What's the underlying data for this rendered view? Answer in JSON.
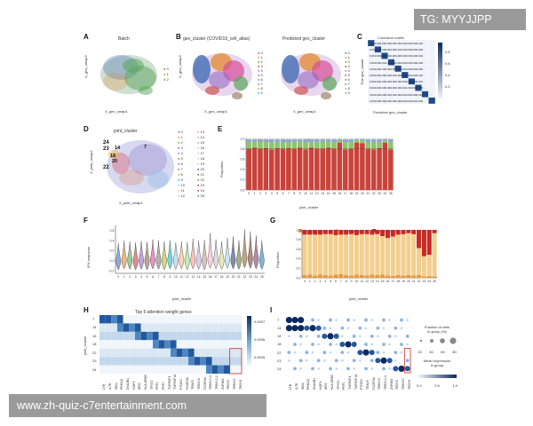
{
  "watermark_top": "TG: MYYJJPP",
  "watermark_bottom": "www.zh-quiz-c7entertainment.com",
  "panels": {
    "A": {
      "letter": "A",
      "title": "Batch",
      "xlabel": "X_gex_umap1",
      "ylabel": "X_gex_umap2",
      "legend": [
        "0",
        "1",
        "2"
      ],
      "legend_colors": [
        "#4b72b5",
        "#e3892e",
        "#5aa65a"
      ]
    },
    "B": {
      "letter": "B",
      "title1": "gex_cluster (COVID19_cell_atlas)",
      "title2": "Predicted gex_cluster",
      "xlabel": "X_gex_umap1",
      "ylabel": "X_gex_umap2",
      "legend": [
        "0",
        "1",
        "2",
        "3",
        "4",
        "5",
        "6",
        "7",
        "8",
        "9"
      ]
    },
    "C": {
      "letter": "C",
      "title": "Confusion matrix",
      "xlabel": "Predicted gex_cluster",
      "ylabel": "True gex_cluster",
      "rows": [
        "0.990.000.000.000.000.000.000.000.000.010",
        "0.000.990.000.000.000.010.000.000.000.000",
        "0.000.000.990.000.000.000.000.000.000.010",
        "0.000.000.001.000.000.000.000.000.000.000",
        "0.000.000.000.000.950.000.000.000.000.050",
        "0.000.000.000.000.000.990.000.000.000.010",
        "0.000.000.000.000.000.000.990.000.000.010",
        "0.000.000.000.000.000.000.001.000.000.000",
        "0.000.000.000.000.000.000.000.000.990.010",
        "0.000.000.000.000.000.000.000.000.001.000"
      ],
      "axis_ticks": [
        "0",
        "1",
        "2",
        "3",
        "4",
        "5",
        "6",
        "7",
        "8",
        "9"
      ],
      "colorbar": [
        "0.8",
        "0.6",
        "0.4",
        "0.2"
      ]
    },
    "D": {
      "letter": "D",
      "title": "joint_cluster",
      "xlabel": "X_joint_umap1",
      "ylabel": "X_joint_umap2",
      "legend_col1": [
        "0",
        "1",
        "2",
        "3",
        "4",
        "5",
        "6",
        "7",
        "8",
        "9",
        "10",
        "11",
        "12"
      ],
      "legend_col2": [
        "13",
        "14",
        "15",
        "16",
        "17",
        "18",
        "19",
        "20",
        "21",
        "22",
        "23",
        "24",
        "25"
      ],
      "labels": [
        "24",
        "23",
        "22",
        "14",
        "18",
        "20",
        "7"
      ]
    },
    "E": {
      "letter": "E",
      "xlabel": "joint_cluster",
      "ylabel": "Proportion",
      "legend": [
        "Covid",
        "Healthy",
        "LPS",
        "Non_covid"
      ],
      "legend_colors": [
        "#c9433b",
        "#8fc46a",
        "#8aa6d6",
        "#c8c8c8"
      ],
      "yticks": [
        "0.0",
        "0.2",
        "0.4",
        "0.6",
        "0.8",
        "1.0"
      ]
    },
    "F": {
      "letter": "F",
      "xlabel": "joint_cluster",
      "ylabel": "IFN response",
      "yticks": [
        "0.6",
        "0.4",
        "0.2",
        "0.0",
        "-0.2"
      ]
    },
    "G": {
      "letter": "G",
      "xlabel": "joint_cluster",
      "ylabel": "Proportion",
      "legend": [
        "Asymptomatic",
        "Mild/moderate",
        "Severe/critical"
      ],
      "legend_colors": [
        "#e69a3c",
        "#f3cf8e",
        "#c72a24"
      ],
      "yticks": [
        "0.0",
        "0.2",
        "0.4",
        "0.6",
        "0.8",
        "1.0"
      ]
    },
    "H": {
      "letter": "H",
      "title": "Top 5 attention weight genes",
      "ylabel": "joint_cluster",
      "rows": [
        "7",
        "14",
        "16",
        "18",
        "22",
        "23",
        "24"
      ],
      "genes": [
        "LTB",
        "IL7R",
        "SELL",
        "PRKCQ",
        "DNAJB1",
        "HOPX",
        "IER2",
        "HLA-DRB5",
        "TPST2",
        "PRF1",
        "PRF1",
        "TNFRSF4",
        "TNFRSF18",
        "PTGDS",
        "FCGR3A",
        "TRAV5",
        "TRBV19",
        "FCGR3A",
        "TRBV10-3",
        "TRBV10-2",
        "ZNF683",
        "TRDV2",
        "TRBV20",
        "TRGV9"
      ],
      "colorbar": [
        "0.0007",
        "0.0006",
        "0.0005"
      ]
    },
    "I": {
      "letter": "I",
      "rows": [
        "7",
        "14",
        "16",
        "18",
        "22",
        "23",
        "24"
      ],
      "genes": [
        "LTB",
        "IL7R",
        "SELL",
        "PRKCQ",
        "DNAJB1",
        "HOPX",
        "IER2",
        "HLA-DRB5",
        "TPST2",
        "PRF1",
        "TNFRSF4",
        "TNFRSF18",
        "PTGDS",
        "TRAV5",
        "FCGR3A",
        "TRBV19",
        "TRBV10-3",
        "ZNF683",
        "TRDV2",
        "TRBV20",
        "TRGV9"
      ],
      "legend_title1": "Fraction of cells",
      "legend_title1b": "in group (%)",
      "size_ticks": [
        "20",
        "40",
        "60",
        "80"
      ],
      "legend_title2": "Mean expression",
      "legend_title2b": "in group",
      "color_ticks": [
        "0.0",
        "0.5",
        "1.0"
      ]
    }
  },
  "chart_data": [
    {
      "type": "bar",
      "panel": "E",
      "categories": [
        "0",
        "1",
        "2",
        "3",
        "4",
        "5",
        "6",
        "7",
        "8",
        "9",
        "10",
        "11",
        "12",
        "13",
        "14",
        "15",
        "16",
        "17",
        "18",
        "19",
        "20",
        "21",
        "22",
        "23",
        "24",
        "25"
      ],
      "series": [
        {
          "name": "Covid",
          "values": [
            0.8,
            0.82,
            0.8,
            0.81,
            0.79,
            0.81,
            0.8,
            0.81,
            0.8,
            0.82,
            0.79,
            0.82,
            0.8,
            0.8,
            0.82,
            0.8,
            0.92,
            0.79,
            0.8,
            0.92,
            0.91,
            0.8,
            0.79,
            0.81,
            0.92,
            0.79
          ]
        },
        {
          "name": "Healthy",
          "values": [
            0.13,
            0.12,
            0.14,
            0.13,
            0.14,
            0.12,
            0.13,
            0.12,
            0.14,
            0.12,
            0.14,
            0.12,
            0.13,
            0.14,
            0.12,
            0.13,
            0.05,
            0.14,
            0.13,
            0.05,
            0.06,
            0.13,
            0.14,
            0.12,
            0.05,
            0.14
          ]
        },
        {
          "name": "LPS",
          "values": [
            0.05,
            0.04,
            0.04,
            0.04,
            0.05,
            0.05,
            0.05,
            0.05,
            0.04,
            0.04,
            0.05,
            0.04,
            0.05,
            0.04,
            0.04,
            0.05,
            0.02,
            0.05,
            0.05,
            0.02,
            0.02,
            0.05,
            0.05,
            0.05,
            0.02,
            0.05
          ]
        },
        {
          "name": "Non_covid",
          "values": [
            0.02,
            0.02,
            0.02,
            0.02,
            0.02,
            0.02,
            0.02,
            0.02,
            0.02,
            0.02,
            0.02,
            0.02,
            0.02,
            0.02,
            0.02,
            0.02,
            0.01,
            0.02,
            0.02,
            0.01,
            0.01,
            0.02,
            0.02,
            0.02,
            0.01,
            0.02
          ]
        }
      ],
      "ylim": [
        0,
        1
      ]
    },
    {
      "type": "bar",
      "panel": "G",
      "categories": [
        "0",
        "1",
        "2",
        "3",
        "4",
        "5",
        "6",
        "7",
        "8",
        "9",
        "10",
        "11",
        "12",
        "13",
        "14",
        "15",
        "16",
        "17",
        "18",
        "19",
        "20",
        "21",
        "22",
        "23",
        "24",
        "25"
      ],
      "series": [
        {
          "name": "Asymptomatic",
          "values": [
            0.06,
            0.07,
            0.05,
            0.07,
            0.06,
            0.05,
            0.07,
            0.08,
            0.06,
            0.05,
            0.07,
            0.06,
            0.05,
            0.07,
            0.06,
            0.07,
            0.05,
            0.04,
            0.06,
            0.05,
            0.06,
            0.05,
            0.06,
            0.03,
            0.04,
            0.03
          ]
        },
        {
          "name": "Mild/moderate",
          "values": [
            0.84,
            0.83,
            0.85,
            0.83,
            0.85,
            0.86,
            0.82,
            0.82,
            0.84,
            0.86,
            0.82,
            0.85,
            0.86,
            0.83,
            0.85,
            0.8,
            0.78,
            0.82,
            0.84,
            0.86,
            0.87,
            0.86,
            0.56,
            0.42,
            0.44,
            0.9
          ]
        },
        {
          "name": "Severe/critical",
          "values": [
            0.1,
            0.1,
            0.1,
            0.1,
            0.09,
            0.09,
            0.11,
            0.1,
            0.1,
            0.09,
            0.11,
            0.09,
            0.09,
            0.1,
            0.09,
            0.13,
            0.17,
            0.14,
            0.1,
            0.09,
            0.07,
            0.09,
            0.38,
            0.55,
            0.52,
            0.07
          ]
        }
      ],
      "ylim": [
        0,
        1
      ]
    },
    {
      "type": "scatter",
      "panel": "F",
      "categories": [
        "0",
        "1",
        "2",
        "3",
        "4",
        "5",
        "6",
        "7",
        "8",
        "9",
        "10",
        "11",
        "12",
        "13",
        "14",
        "15",
        "16",
        "17",
        "18",
        "19",
        "20",
        "21",
        "22",
        "23",
        "24",
        "25"
      ],
      "median": [
        0.0,
        0.01,
        0.02,
        0.0,
        0.01,
        0.0,
        0.02,
        0.01,
        0.0,
        0.02,
        0.01,
        0.01,
        0.0,
        0.02,
        0.0,
        0.01,
        0.03,
        0.02,
        0.0,
        0.03,
        0.02,
        0.01,
        0.06,
        0.05,
        0.04,
        0.01
      ],
      "max": [
        0.35,
        0.4,
        0.38,
        0.36,
        0.39,
        0.37,
        0.42,
        0.4,
        0.38,
        0.4,
        0.36,
        0.38,
        0.37,
        0.44,
        0.4,
        0.41,
        0.55,
        0.42,
        0.38,
        0.45,
        0.48,
        0.4,
        0.62,
        0.58,
        0.5,
        0.4
      ],
      "min": [
        -0.18,
        -0.16,
        -0.17,
        -0.18,
        -0.17,
        -0.18,
        -0.16,
        -0.17,
        -0.18,
        -0.16,
        -0.17,
        -0.16,
        -0.18,
        -0.16,
        -0.17,
        -0.18,
        -0.15,
        -0.16,
        -0.17,
        -0.15,
        -0.16,
        -0.17,
        -0.14,
        -0.15,
        -0.16,
        -0.17
      ],
      "ylim": [
        -0.25,
        0.7
      ]
    }
  ]
}
